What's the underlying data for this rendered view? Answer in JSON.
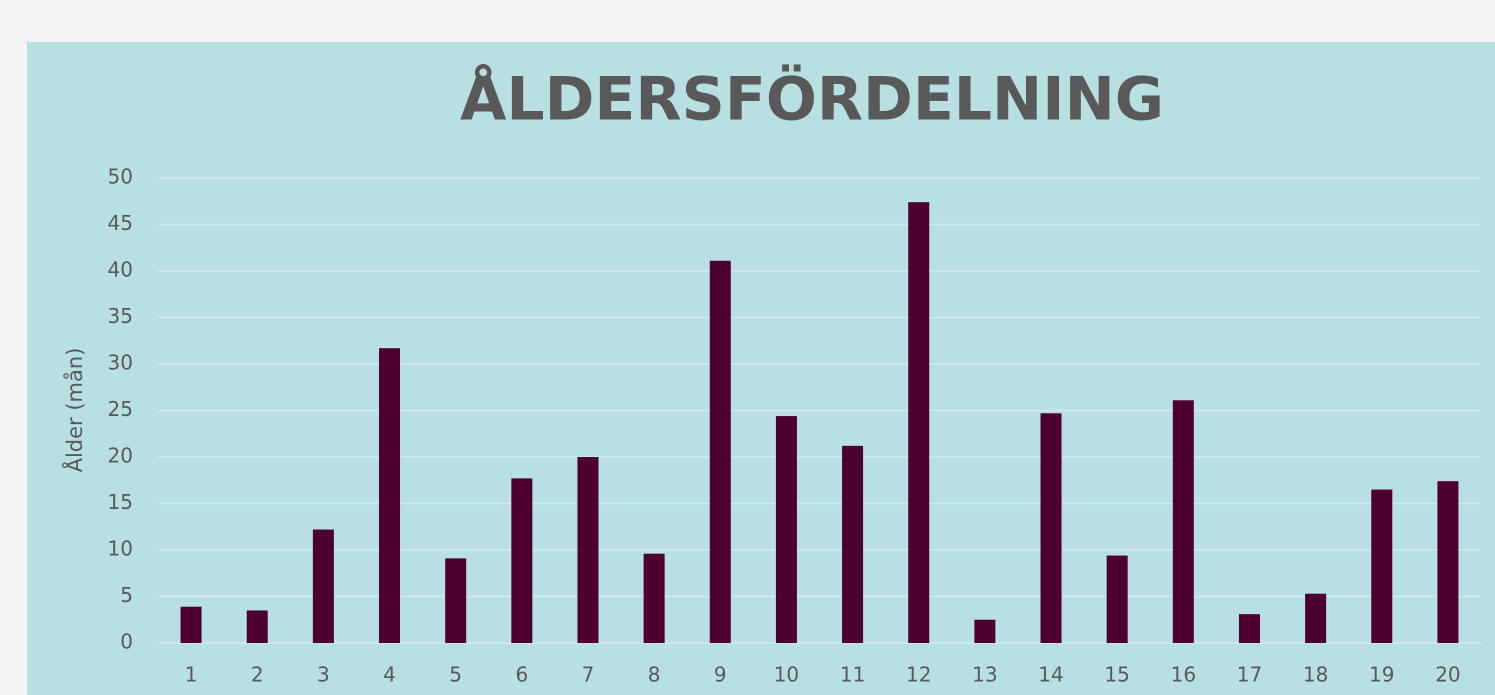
{
  "chart_data": {
    "type": "bar",
    "title": "ÅLDERSFÖRDELNING",
    "y_label": "Ålder (mån)",
    "categories": [
      "1",
      "2",
      "3",
      "4",
      "5",
      "6",
      "7",
      "8",
      "9",
      "10",
      "11",
      "12",
      "13",
      "14",
      "15",
      "16",
      "17",
      "18",
      "19",
      "20"
    ],
    "values": [
      3.9,
      3.5,
      12.2,
      31.7,
      9.1,
      17.7,
      20,
      9.6,
      41.1,
      24.4,
      21.2,
      47.4,
      2.5,
      24.7,
      9.4,
      26.1,
      3.1,
      5.3,
      16.5,
      17.4
    ],
    "color": "#4d0030",
    "ylim": [
      0,
      50
    ],
    "yticks": [
      0,
      5,
      10,
      15,
      20,
      25,
      30,
      35,
      40,
      45,
      50
    ],
    "grid": true
  }
}
